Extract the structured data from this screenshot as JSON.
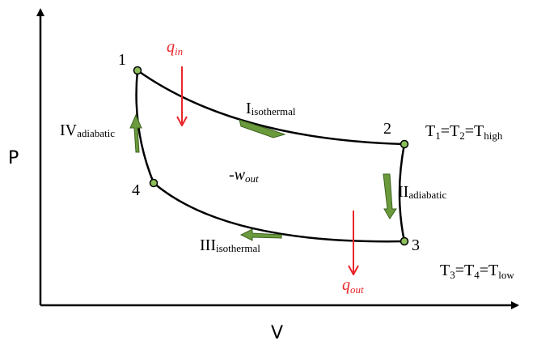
{
  "axes": {
    "y_label": "P",
    "x_label": "V"
  },
  "states": [
    {
      "label": "1"
    },
    {
      "label": "2"
    },
    {
      "label": "3"
    },
    {
      "label": "4"
    }
  ],
  "processes": [
    {
      "base": "I",
      "sub": "isothermal"
    },
    {
      "base": "II",
      "sub": "adiabatic"
    },
    {
      "base": "III",
      "sub": "isothermal"
    },
    {
      "base": "IV",
      "sub": "adiabatic"
    }
  ],
  "heat_in": {
    "base": "q",
    "sub": "in"
  },
  "heat_out": {
    "base": "q",
    "sub": "out"
  },
  "work": {
    "base": "-w",
    "sub": "out"
  },
  "temperatures": [
    [
      {
        "base": "T",
        "sub": "1"
      },
      {
        "base": "=T",
        "sub": "2"
      },
      {
        "base": "=T",
        "sub": "high"
      }
    ],
    [
      {
        "base": "T",
        "sub": "3"
      },
      {
        "base": "=T",
        "sub": "4"
      },
      {
        "base": "=T",
        "sub": "low"
      }
    ]
  ]
}
